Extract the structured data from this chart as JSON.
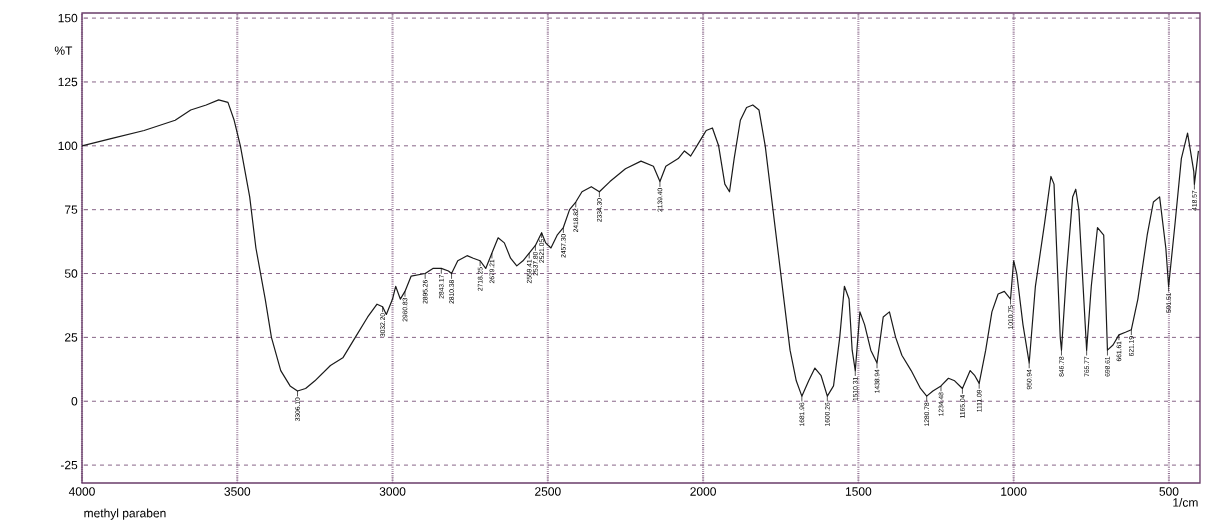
{
  "chart_data": {
    "type": "line",
    "xlabel": "1/cm",
    "ylabel": "%T",
    "xlim": [
      4000,
      400
    ],
    "ylim": [
      -32,
      152
    ],
    "xticks": [
      4000,
      3500,
      3000,
      2500,
      2000,
      1500,
      1000,
      500
    ],
    "yticks": [
      -25,
      0,
      25,
      50,
      75,
      100,
      125,
      150
    ],
    "grid": true,
    "marker": "none",
    "line_style": "solid",
    "series": [
      {
        "color": "#1a1a1a",
        "x": [
          4000,
          3900,
          3800,
          3700,
          3650,
          3600,
          3560,
          3530,
          3510,
          3490,
          3460,
          3440,
          3410,
          3390,
          3360,
          3330,
          3306,
          3280,
          3250,
          3200,
          3160,
          3120,
          3080,
          3050,
          3032,
          3020,
          3000,
          2990,
          2975,
          2960,
          2940,
          2895,
          2870,
          2843,
          2820,
          2810,
          2790,
          2760,
          2740,
          2718,
          2700,
          2680,
          2660,
          2640,
          2620,
          2600,
          2580,
          2560,
          2540,
          2520,
          2507,
          2490,
          2470,
          2450,
          2430,
          2410,
          2390,
          2360,
          2334,
          2300,
          2250,
          2200,
          2160,
          2139,
          2120,
          2080,
          2060,
          2040,
          2020,
          2000,
          1990,
          1970,
          1950,
          1930,
          1915,
          1900,
          1880,
          1860,
          1840,
          1820,
          1800,
          1780,
          1760,
          1740,
          1720,
          1700,
          1682,
          1660,
          1640,
          1620,
          1600,
          1580,
          1560,
          1545,
          1530,
          1520,
          1510,
          1495,
          1480,
          1460,
          1440,
          1420,
          1400,
          1380,
          1360,
          1330,
          1300,
          1280,
          1260,
          1234,
          1210,
          1190,
          1165,
          1140,
          1125,
          1111,
          1090,
          1070,
          1050,
          1030,
          1010,
          1000,
          990,
          970,
          950,
          930,
          900,
          880,
          870,
          850,
          846,
          830,
          810,
          800,
          790,
          765,
          750,
          730,
          710,
          698,
          680,
          661,
          640,
          621,
          600,
          570,
          550,
          530,
          510,
          501,
          480,
          460,
          440,
          420,
          418,
          405
        ],
        "values": [
          100,
          103,
          106,
          110,
          114,
          116,
          118,
          117,
          110,
          100,
          80,
          60,
          40,
          25,
          12,
          6,
          4,
          5,
          8,
          14,
          17,
          25,
          33,
          38,
          37,
          34,
          40,
          45,
          40,
          43,
          49,
          50,
          52,
          52,
          51,
          50,
          55,
          57,
          56,
          55,
          52,
          58,
          64,
          62,
          56,
          53,
          55,
          58,
          61,
          66,
          62,
          60,
          65,
          68,
          75,
          78,
          82,
          84,
          82,
          86,
          91,
          94,
          92,
          86,
          92,
          95,
          98,
          96,
          100,
          104,
          106,
          107,
          100,
          85,
          82,
          95,
          110,
          115,
          116,
          114,
          100,
          80,
          60,
          40,
          20,
          8,
          2,
          8,
          13,
          10,
          2,
          6,
          25,
          45,
          40,
          20,
          12,
          35,
          30,
          20,
          15,
          33,
          35,
          25,
          18,
          12,
          5,
          2,
          4,
          6,
          9,
          8,
          5,
          12,
          10,
          7,
          20,
          35,
          42,
          43,
          40,
          55,
          50,
          30,
          15,
          45,
          70,
          88,
          85,
          25,
          20,
          50,
          80,
          83,
          75,
          20,
          45,
          68,
          65,
          20,
          22,
          26,
          27,
          28,
          40,
          65,
          78,
          80,
          60,
          45,
          70,
          95,
          105,
          90,
          85,
          98
        ]
      }
    ],
    "annotations": [
      "methyl paraben",
      {
        "text": "3306.10",
        "x": 3306,
        "y": 4
      },
      {
        "text": "3032.20",
        "x": 3032,
        "y": 37
      },
      {
        "text": "2960.83",
        "x": 2960,
        "y": 43
      },
      {
        "text": "2895.26",
        "x": 2895,
        "y": 50
      },
      {
        "text": "2843.17",
        "x": 2843,
        "y": 52
      },
      {
        "text": "2810.38",
        "x": 2810,
        "y": 50
      },
      {
        "text": "2718.25",
        "x": 2718,
        "y": 55
      },
      {
        "text": "2679.21",
        "x": 2680,
        "y": 58
      },
      {
        "text": "2559.41",
        "x": 2560,
        "y": 58
      },
      {
        "text": "2537.80",
        "x": 2540,
        "y": 61
      },
      {
        "text": "2521.05",
        "x": 2520,
        "y": 66
      },
      {
        "text": "2457.30",
        "x": 2450,
        "y": 68
      },
      {
        "text": "2418.82",
        "x": 2410,
        "y": 78
      },
      {
        "text": "2334.30",
        "x": 2334,
        "y": 82
      },
      {
        "text": "2139.40",
        "x": 2139,
        "y": 86
      },
      {
        "text": "1681.96",
        "x": 1682,
        "y": 2
      },
      {
        "text": "1600.26",
        "x": 1600,
        "y": 2
      },
      {
        "text": "1510.31",
        "x": 1510,
        "y": 12
      },
      {
        "text": "1438.94",
        "x": 1440,
        "y": 15
      },
      {
        "text": "1280.78",
        "x": 1280,
        "y": 2
      },
      {
        "text": "1234.48",
        "x": 1234,
        "y": 6
      },
      {
        "text": "1165.04",
        "x": 1165,
        "y": 5
      },
      {
        "text": "1111.09",
        "x": 1111,
        "y": 7
      },
      {
        "text": "1010.75",
        "x": 1010,
        "y": 40
      },
      {
        "text": "950.94",
        "x": 950,
        "y": 15
      },
      {
        "text": "846.78",
        "x": 846,
        "y": 20
      },
      {
        "text": "765.77",
        "x": 765,
        "y": 20
      },
      {
        "text": "698.61",
        "x": 698,
        "y": 20
      },
      {
        "text": "661.61",
        "x": 661,
        "y": 26
      },
      {
        "text": "621.19",
        "x": 621,
        "y": 28
      },
      {
        "text": "501.51",
        "x": 501,
        "y": 45
      },
      {
        "text": "418.57",
        "x": 418,
        "y": 85
      }
    ]
  }
}
